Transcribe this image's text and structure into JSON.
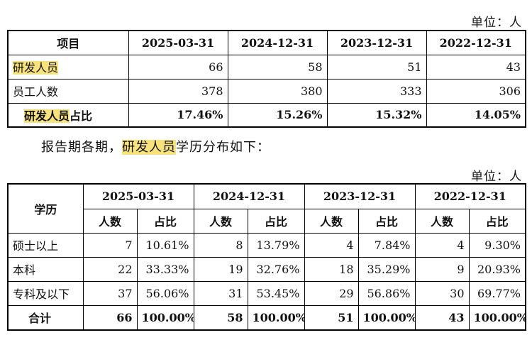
{
  "unit_label": "单位：人",
  "table1": {
    "header": [
      "项目",
      "2025-03-31",
      "2024-12-31",
      "2023-12-31",
      "2022-12-31"
    ],
    "rows": [
      {
        "label": "研发人员",
        "values": [
          "66",
          "58",
          "51",
          "43"
        ]
      },
      {
        "label": "员工人数",
        "values": [
          "378",
          "380",
          "333",
          "306"
        ]
      },
      {
        "label_hl": "研发人员",
        "label_rest": "占比",
        "values": [
          "17.46%",
          "15.26%",
          "15.32%",
          "14.05%"
        ]
      }
    ]
  },
  "paragraph": {
    "before": "报告期各期，",
    "highlight": "研发人员",
    "after": "学历分布如下："
  },
  "table2": {
    "row_header": "学历",
    "periods": [
      "2025-03-31",
      "2024-12-31",
      "2023-12-31",
      "2022-12-31"
    ],
    "sub_headers": [
      "人数",
      "占比"
    ],
    "rows": [
      {
        "label": "硕士以上",
        "values": [
          "7",
          "10.61%",
          "8",
          "13.79%",
          "4",
          "7.84%",
          "4",
          "9.30%"
        ]
      },
      {
        "label": "本科",
        "values": [
          "22",
          "33.33%",
          "19",
          "32.76%",
          "18",
          "35.29%",
          "9",
          "20.93%"
        ]
      },
      {
        "label": "专科及以下",
        "values": [
          "37",
          "56.06%",
          "31",
          "53.45%",
          "29",
          "56.86%",
          "30",
          "69.77%"
        ]
      },
      {
        "label": "合计",
        "values": [
          "66",
          "100.00%",
          "58",
          "100.00%",
          "51",
          "100.00%",
          "43",
          "100.00%"
        ]
      }
    ]
  }
}
